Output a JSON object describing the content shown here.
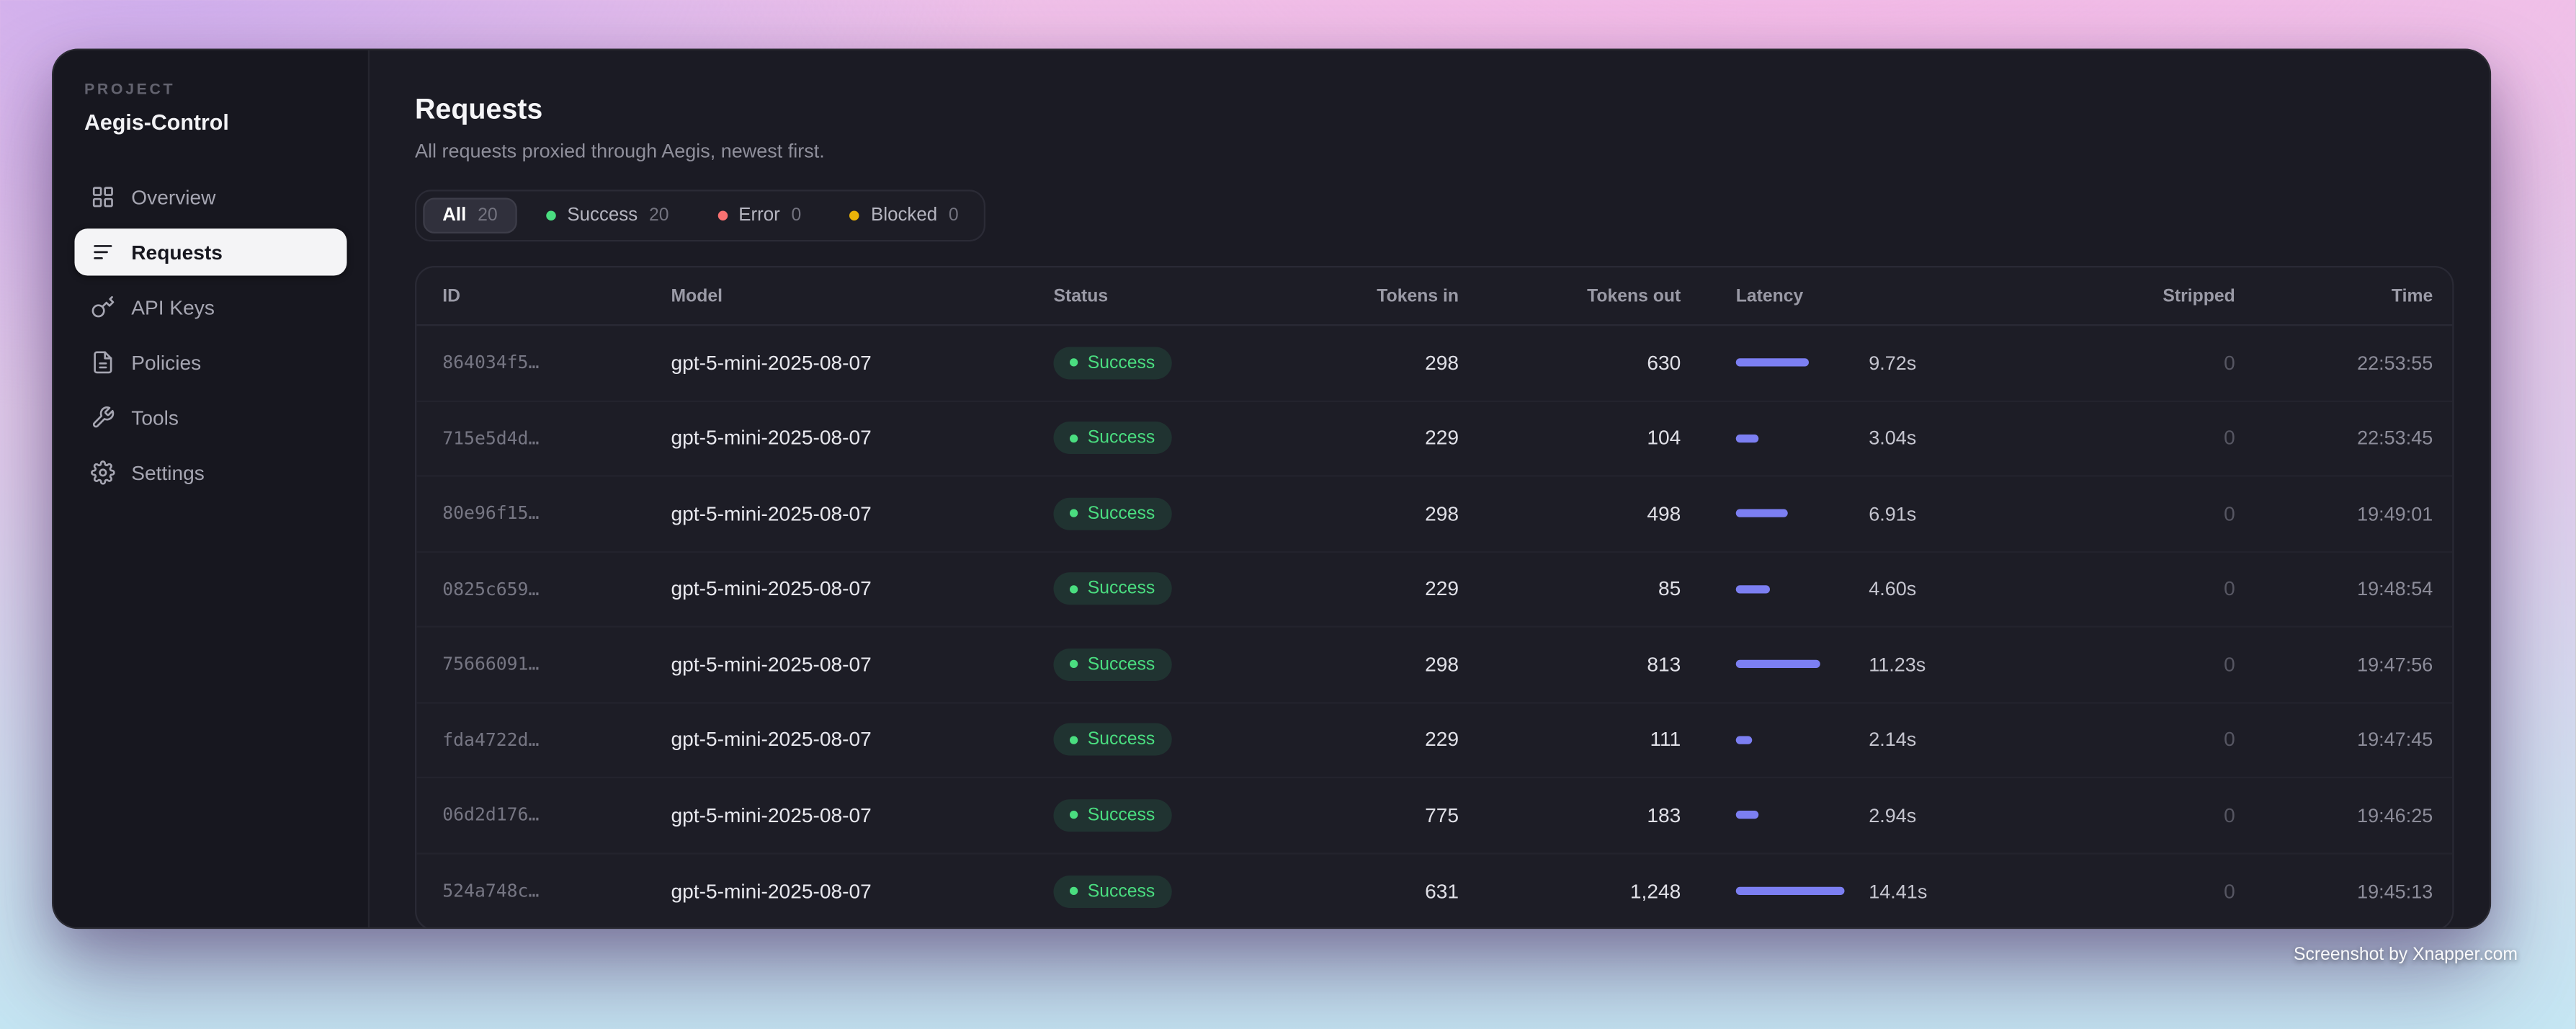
{
  "sidebar": {
    "project_label": "PROJECT",
    "project_name": "Aegis-Control",
    "items": [
      {
        "label": "Overview",
        "icon": "grid-icon",
        "active": false
      },
      {
        "label": "Requests",
        "icon": "list-icon",
        "active": true
      },
      {
        "label": "API Keys",
        "icon": "key-icon",
        "active": false
      },
      {
        "label": "Policies",
        "icon": "document-icon",
        "active": false
      },
      {
        "label": "Tools",
        "icon": "wrench-icon",
        "active": false
      },
      {
        "label": "Settings",
        "icon": "gear-icon",
        "active": false
      }
    ]
  },
  "header": {
    "title": "Requests",
    "subtitle": "All requests proxied through Aegis, newest first."
  },
  "filters": [
    {
      "label": "All",
      "count": "20",
      "active": true,
      "dot_color": null
    },
    {
      "label": "Success",
      "count": "20",
      "active": false,
      "dot_color": "#4ade80"
    },
    {
      "label": "Error",
      "count": "0",
      "active": false,
      "dot_color": "#f87171"
    },
    {
      "label": "Blocked",
      "count": "0",
      "active": false,
      "dot_color": "#eab308"
    }
  ],
  "table": {
    "columns": [
      "ID",
      "Model",
      "Status",
      "Tokens in",
      "Tokens out",
      "Latency",
      "Stripped",
      "Time"
    ],
    "latency_axis_max_seconds": 15,
    "rows": [
      {
        "id": "864034f5…",
        "model": "gpt-5-mini-2025-08-07",
        "status": "Success",
        "tokens_in": "298",
        "tokens_out": "630",
        "latency_seconds": 9.72,
        "latency_label": "9.72s",
        "stripped": "0",
        "time": "22:53:55"
      },
      {
        "id": "715e5d4d…",
        "model": "gpt-5-mini-2025-08-07",
        "status": "Success",
        "tokens_in": "229",
        "tokens_out": "104",
        "latency_seconds": 3.04,
        "latency_label": "3.04s",
        "stripped": "0",
        "time": "22:53:45"
      },
      {
        "id": "80e96f15…",
        "model": "gpt-5-mini-2025-08-07",
        "status": "Success",
        "tokens_in": "298",
        "tokens_out": "498",
        "latency_seconds": 6.91,
        "latency_label": "6.91s",
        "stripped": "0",
        "time": "19:49:01"
      },
      {
        "id": "0825c659…",
        "model": "gpt-5-mini-2025-08-07",
        "status": "Success",
        "tokens_in": "229",
        "tokens_out": "85",
        "latency_seconds": 4.6,
        "latency_label": "4.60s",
        "stripped": "0",
        "time": "19:48:54"
      },
      {
        "id": "75666091…",
        "model": "gpt-5-mini-2025-08-07",
        "status": "Success",
        "tokens_in": "298",
        "tokens_out": "813",
        "latency_seconds": 11.23,
        "latency_label": "11.23s",
        "stripped": "0",
        "time": "19:47:56"
      },
      {
        "id": "fda4722d…",
        "model": "gpt-5-mini-2025-08-07",
        "status": "Success",
        "tokens_in": "229",
        "tokens_out": "111",
        "latency_seconds": 2.14,
        "latency_label": "2.14s",
        "stripped": "0",
        "time": "19:47:45"
      },
      {
        "id": "06d2d176…",
        "model": "gpt-5-mini-2025-08-07",
        "status": "Success",
        "tokens_in": "775",
        "tokens_out": "183",
        "latency_seconds": 2.94,
        "latency_label": "2.94s",
        "stripped": "0",
        "time": "19:46:25"
      },
      {
        "id": "524a748c…",
        "model": "gpt-5-mini-2025-08-07",
        "status": "Success",
        "tokens_in": "631",
        "tokens_out": "1,248",
        "latency_seconds": 14.41,
        "latency_label": "14.41s",
        "stripped": "0",
        "time": "19:45:13"
      }
    ]
  },
  "colors": {
    "success": "#4ade80",
    "success_dot": "#4ade80",
    "latency_bar": "#7c7ff2"
  },
  "watermark": "Screenshot by Xnapper.com"
}
